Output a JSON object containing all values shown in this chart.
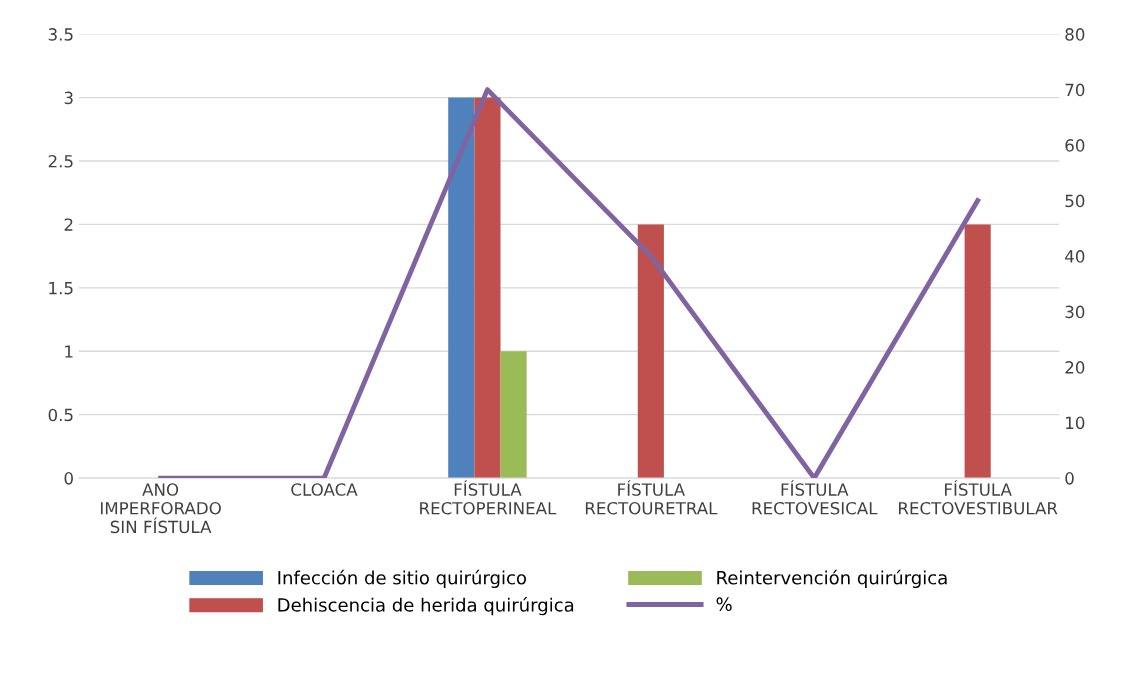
{
  "chart_data": {
    "type": "bar",
    "categories": [
      "ANO\nIMPERFORADO\nSIN FÍSTULA",
      "CLOACA",
      "FÍSTULA\nRECTOPERINEAL",
      "FÍSTULA\nRECTOURETRAL",
      "FÍSTULA\nRECTOVESICAL",
      "FÍSTULA\nRECTOVESTIBULAR"
    ],
    "series": [
      {
        "name": "Infección de sitio quirúrgico",
        "color": "#4f81bd",
        "values": [
          0,
          0,
          3,
          0,
          0,
          0
        ]
      },
      {
        "name": "Dehiscencia de herida quirúrgica",
        "color": "#c0504d",
        "values": [
          0,
          0,
          3,
          2,
          0,
          2
        ]
      },
      {
        "name": "Reintervención quirúrgica",
        "color": "#9bbb59",
        "values": [
          0,
          0,
          1,
          0,
          0,
          0
        ]
      },
      {
        "name": "%",
        "color": "#8064a2",
        "type": "line",
        "axis": "y2",
        "values": [
          0,
          0,
          70,
          40,
          0,
          50
        ]
      }
    ],
    "ylim": [
      0,
      3.5
    ],
    "yticks": [
      0,
      0.5,
      1,
      1.5,
      2,
      2.5,
      3,
      3.5
    ],
    "y2lim": [
      0,
      80
    ],
    "y2ticks": [
      0,
      10,
      20,
      30,
      40,
      50,
      60,
      70,
      80
    ],
    "grid": "y",
    "legend": "bottom",
    "marker": "none"
  }
}
